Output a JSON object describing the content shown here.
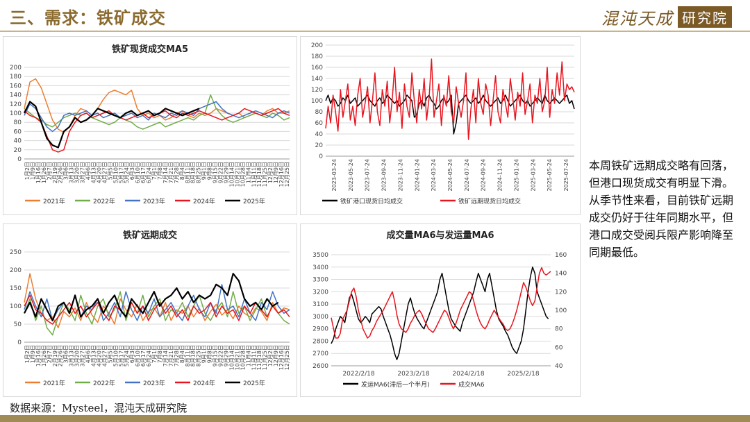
{
  "header": {
    "title": "三、需求：铁矿成交",
    "logo_text": "混沌天成",
    "logo_box": "研究院"
  },
  "note": {
    "p1": "本周铁矿远期成交略有回落，但港口现货成交有明显下滑。",
    "p2": "从季节性来看，目前铁矿远期成交仍好于往年同期水平，但港口成交受阅兵限产影响降至同期最低。"
  },
  "source": "数据来源：Mysteel，混沌天成研究院",
  "colors": {
    "brand": "#8a6a2e",
    "s2021": "#ED7D31",
    "s2022": "#70AD47",
    "s2023": "#4472C4",
    "s2024": "#E8141E",
    "s2025": "#000000"
  },
  "chart_data": [
    {
      "type": "line",
      "title": "铁矿现货成交MA5",
      "ylim": [
        0,
        200
      ],
      "yticks": [
        0,
        20,
        40,
        60,
        80,
        100,
        120,
        140,
        160,
        180,
        200
      ],
      "xticks": [
        "1月2日",
        "1月9日",
        "1月16日",
        "1月26日",
        "2月7日",
        "2月19日",
        "2月26日",
        "3月6日",
        "3月13日",
        "3月20日",
        "3月27日",
        "4月6日",
        "4月13日",
        "4月20日",
        "4月27日",
        "5月5日",
        "5月10日",
        "5月17日",
        "5月24日",
        "6月3日",
        "6月10日",
        "6月17日",
        "6月24日",
        "7月1日",
        "7月8日",
        "7月14日",
        "7月21日",
        "7月28日",
        "8月4日",
        "8月11日",
        "8月18日",
        "8月25日",
        "9月1日",
        "9月8日",
        "9月15日",
        "9月22日",
        "9月29日",
        "10月14日",
        "10月21日",
        "10月28日",
        "11月4日",
        "11月11日",
        "11月18日",
        "11月25日",
        "12月2日",
        "12月9日",
        "12月16日",
        "12月25日"
      ],
      "series": [
        {
          "name": "2021年",
          "color": "#ED7D31",
          "values": [
            110,
            168,
            175,
            155,
            120,
            85,
            65,
            58,
            70,
            95,
            110,
            105,
            95,
            110,
            130,
            145,
            150,
            145,
            140,
            150,
            110,
            95,
            100,
            90,
            95,
            85,
            90,
            100,
            105,
            95,
            90,
            100,
            95,
            100,
            110,
            105,
            100,
            95,
            100,
            90,
            95,
            100,
            95,
            105,
            110,
            100,
            100,
            105
          ]
        },
        {
          "name": "2022年",
          "color": "#70AD47",
          "values": [
            110,
            100,
            90,
            85,
            75,
            70,
            80,
            90,
            95,
            100,
            95,
            100,
            90,
            85,
            80,
            75,
            80,
            90,
            85,
            80,
            70,
            65,
            70,
            75,
            80,
            70,
            75,
            80,
            85,
            90,
            85,
            95,
            100,
            140,
            110,
            95,
            85,
            80,
            85,
            90,
            95,
            100,
            95,
            90,
            100,
            95,
            85,
            90
          ]
        },
        {
          "name": "2023年",
          "color": "#4472C4",
          "values": [
            95,
            120,
            110,
            90,
            70,
            60,
            70,
            95,
            100,
            95,
            100,
            105,
            95,
            100,
            90,
            95,
            100,
            90,
            95,
            100,
            90,
            95,
            85,
            100,
            95,
            90,
            100,
            95,
            105,
            100,
            95,
            110,
            115,
            120,
            125,
            110,
            100,
            95,
            90,
            95,
            100,
            105,
            100,
            95,
            90,
            100,
            105,
            100
          ]
        },
        {
          "name": "2024年",
          "color": "#E8141E",
          "values": [
            105,
            95,
            90,
            80,
            50,
            20,
            15,
            20,
            60,
            80,
            95,
            100,
            90,
            95,
            100,
            105,
            95,
            90,
            85,
            90,
            95,
            100,
            90,
            95,
            100,
            105,
            95,
            90,
            100,
            95,
            100,
            105,
            100,
            95,
            90,
            85,
            90,
            95,
            100,
            110,
            105,
            100,
            95,
            100,
            105,
            110,
            100,
            95
          ]
        },
        {
          "name": "2025年",
          "color": "#000000",
          "values": [
            100,
            125,
            115,
            80,
            45,
            30,
            25,
            60,
            70,
            90,
            80,
            85,
            95,
            110,
            105,
            100,
            95,
            90,
            100,
            105,
            95,
            100,
            105,
            95,
            100,
            110,
            105,
            100,
            95,
            100,
            105,
            110
          ]
        }
      ]
    },
    {
      "type": "line",
      "title": "",
      "ylim": [
        0,
        200
      ],
      "yticks": [
        0,
        20,
        40,
        60,
        80,
        100,
        120,
        140,
        160,
        180,
        200
      ],
      "xticks": [
        "2023-03-24",
        "2023-05-24",
        "2023-07-24",
        "2023-09-24",
        "2023-11-24",
        "2024-01-24",
        "2024-03-24",
        "2024-05-24",
        "2024-07-24",
        "2024-09-24",
        "2024-11-24",
        "2025-01-24",
        "2025-03-24",
        "2025-05-24",
        "2025-07-24"
      ],
      "series": [
        {
          "name": "铁矿港口现货日均成交",
          "color": "#000000",
          "values": [
            100,
            110,
            95,
            105,
            100,
            90,
            95,
            105,
            100,
            110,
            95,
            100,
            105,
            90,
            95,
            100,
            105,
            110,
            100,
            95,
            90,
            100,
            105,
            95,
            100,
            110,
            105,
            100,
            95,
            100,
            90,
            95,
            100,
            110,
            105,
            100,
            70,
            75,
            95,
            100,
            90,
            105,
            110,
            100,
            95,
            85,
            90,
            100,
            105,
            95,
            100,
            110,
            40,
            60,
            95,
            100,
            105,
            110,
            100,
            95,
            100,
            105,
            95,
            100,
            110,
            100,
            95,
            90,
            95,
            100,
            105,
            95,
            100,
            110,
            100,
            90,
            95,
            100,
            105,
            110,
            100,
            95,
            100,
            90,
            95,
            100,
            105,
            100,
            95,
            110,
            100,
            95,
            100,
            105,
            100,
            95,
            100,
            105,
            110,
            95,
            100,
            85
          ]
        },
        {
          "name": "铁矿远期现货日均成交",
          "color": "#E8141E",
          "values": [
            50,
            90,
            60,
            110,
            80,
            45,
            120,
            70,
            100,
            130,
            65,
            90,
            55,
            110,
            140,
            70,
            95,
            125,
            60,
            100,
            150,
            80,
            55,
            120,
            90,
            135,
            60,
            100,
            160,
            80,
            115,
            50,
            130,
            90,
            70,
            150,
            100,
            60,
            120,
            85,
            140,
            65,
            105,
            175,
            70,
            100,
            130,
            55,
            110,
            90,
            145,
            80,
            60,
            125,
            95,
            70,
            100,
            150,
            30,
            85,
            120,
            60,
            140,
            95,
            75,
            130,
            110,
            55,
            100,
            145,
            80,
            60,
            120,
            95,
            70,
            140,
            105,
            65,
            115,
            90,
            150,
            75,
            100,
            130,
            60,
            110,
            95,
            140,
            80,
            100,
            160,
            70,
            120,
            95,
            150,
            110,
            170,
            100,
            130,
            120,
            125,
            115
          ]
        }
      ]
    },
    {
      "type": "line",
      "title": "铁矿远期成交",
      "ylim": [
        0,
        250
      ],
      "yticks": [
        0,
        50,
        100,
        150,
        200,
        250
      ],
      "xticks": [
        "1月2日",
        "1月9日",
        "1月16日",
        "1月26日",
        "2月7日",
        "2月19日",
        "2月26日",
        "3月6日",
        "3月13日",
        "3月20日",
        "3月27日",
        "4月6日",
        "4月13日",
        "4月20日",
        "4月27日",
        "5月5日",
        "5月10日",
        "5月17日",
        "5月24日",
        "6月3日",
        "6月10日",
        "6月17日",
        "6月24日",
        "7月1日",
        "7月8日",
        "7月14日",
        "7月21日",
        "7月28日",
        "8月4日",
        "8月11日",
        "8月18日",
        "8月25日",
        "9月1日",
        "9月8日",
        "9月15日",
        "9月22日",
        "9月29日",
        "10月14日",
        "10月21日",
        "10月28日",
        "11月4日",
        "11月11日",
        "11月18日",
        "11月25日",
        "12月2日",
        "12月9日",
        "12月16日",
        "12月25日"
      ],
      "series": [
        {
          "name": "2021年",
          "color": "#ED7D31",
          "values": [
            110,
            190,
            120,
            80,
            60,
            70,
            40,
            85,
            70,
            95,
            60,
            110,
            75,
            55,
            100,
            80,
            50,
            120,
            90,
            70,
            105,
            60,
            85,
            95,
            70,
            110,
            60,
            90,
            80,
            100,
            70,
            95,
            60,
            85,
            105,
            75,
            90,
            65,
            100,
            80,
            70,
            95,
            85,
            60,
            110,
            80,
            95,
            90
          ]
        },
        {
          "name": "2022年",
          "color": "#70AD47",
          "values": [
            80,
            120,
            60,
            100,
            40,
            20,
            70,
            110,
            90,
            60,
            130,
            80,
            50,
            100,
            120,
            70,
            90,
            140,
            60,
            110,
            80,
            130,
            70,
            100,
            120,
            60,
            90,
            80,
            110,
            70,
            100,
            130,
            80,
            60,
            90,
            110,
            70,
            140,
            80,
            100,
            60,
            90,
            120,
            70,
            100,
            80,
            60,
            50
          ]
        },
        {
          "name": "2023年",
          "color": "#4472C4",
          "values": [
            90,
            140,
            100,
            70,
            120,
            60,
            90,
            110,
            80,
            130,
            70,
            100,
            90,
            120,
            60,
            80,
            110,
            70,
            140,
            90,
            60,
            100,
            80,
            120,
            70,
            90,
            110,
            80,
            60,
            100,
            130,
            90,
            70,
            110,
            80,
            160,
            90,
            100,
            70,
            120,
            80,
            60,
            110,
            90,
            140,
            100,
            80,
            90
          ]
        },
        {
          "name": "2024年",
          "color": "#E8141E",
          "values": [
            100,
            130,
            90,
            80,
            60,
            50,
            70,
            90,
            110,
            80,
            100,
            70,
            90,
            110,
            80,
            60,
            100,
            90,
            70,
            110,
            80,
            100,
            60,
            90,
            110,
            80,
            100,
            70,
            90,
            60,
            100,
            80,
            90,
            110,
            70,
            100,
            80,
            90,
            60,
            100,
            80,
            110,
            90,
            70,
            100,
            80,
            90,
            70
          ]
        },
        {
          "name": "2025年",
          "color": "#000000",
          "values": [
            80,
            110,
            70,
            120,
            90,
            60,
            100,
            110,
            80,
            130,
            70,
            90,
            100,
            120,
            80,
            110,
            130,
            90,
            70,
            120,
            100,
            80,
            110,
            140,
            100,
            120,
            130,
            150,
            120,
            140,
            110,
            130,
            120,
            130,
            160,
            150,
            130,
            190,
            170,
            120,
            100,
            110,
            90,
            120,
            100,
            110
          ]
        }
      ]
    },
    {
      "type": "line",
      "title": "成交量MA6与发运量MA6",
      "ylim": [
        2600,
        3500
      ],
      "yticks": [
        2600,
        2700,
        2800,
        2900,
        3000,
        3100,
        3200,
        3300,
        3400,
        3500
      ],
      "y2lim": [
        40,
        160
      ],
      "y2ticks": [
        40,
        60,
        80,
        100,
        120,
        140,
        160
      ],
      "xticks": [
        "2022/2/18",
        "2023/2/18",
        "2024/2/18",
        "2025/2/18"
      ],
      "series": [
        {
          "name": "发运MA6(滞后一个半月)",
          "color": "#000000",
          "axis": "left",
          "values": [
            2780,
            2820,
            2900,
            2950,
            3000,
            2980,
            2950,
            3050,
            3150,
            3180,
            3120,
            3050,
            2980,
            2950,
            2970,
            3000,
            2980,
            2950,
            3020,
            3040,
            3060,
            3080,
            3060,
            3000,
            2950,
            2900,
            2850,
            2780,
            2700,
            2650,
            2700,
            2800,
            2900,
            3000,
            3100,
            3150,
            3080,
            3020,
            2980,
            2950,
            2920,
            2900,
            2950,
            3000,
            3050,
            3100,
            3150,
            3200,
            3300,
            3350,
            3250,
            3150,
            3050,
            2980,
            2950,
            2920,
            2900,
            2880,
            2950,
            3000,
            3050,
            3100,
            3150,
            3200,
            3280,
            3350,
            3300,
            3250,
            3200,
            3300,
            3350,
            3250,
            3150,
            3050,
            2980,
            2950,
            2920,
            2880,
            2850,
            2800,
            2750,
            2720,
            2700,
            2750,
            2800,
            2900,
            3050,
            3200,
            3320,
            3400,
            3350,
            3200,
            3150,
            3100,
            3050,
            3000,
            2980
          ]
        },
        {
          "name": "成交MA6",
          "color": "#E8141E",
          "axis": "right",
          "values": [
            92,
            80,
            70,
            70,
            75,
            90,
            95,
            100,
            110,
            120,
            124,
            115,
            100,
            90,
            80,
            75,
            70,
            72,
            78,
            82,
            88,
            92,
            96,
            100,
            105,
            110,
            115,
            120,
            110,
            95,
            85,
            80,
            78,
            76,
            80,
            86,
            90,
            95,
            98,
            100,
            96,
            90,
            85,
            80,
            78,
            76,
            80,
            85,
            90,
            95,
            100,
            98,
            92,
            85,
            80,
            85,
            92,
            100,
            105,
            110,
            115,
            120,
            118,
            110,
            100,
            92,
            86,
            82,
            80,
            84,
            90,
            95,
            100,
            96,
            92,
            88,
            85,
            80,
            78,
            80,
            85,
            92,
            100,
            110,
            120,
            130,
            125,
            118,
            110,
            105,
            110,
            125,
            140,
            146,
            140,
            138,
            140,
            142
          ]
        }
      ]
    }
  ]
}
